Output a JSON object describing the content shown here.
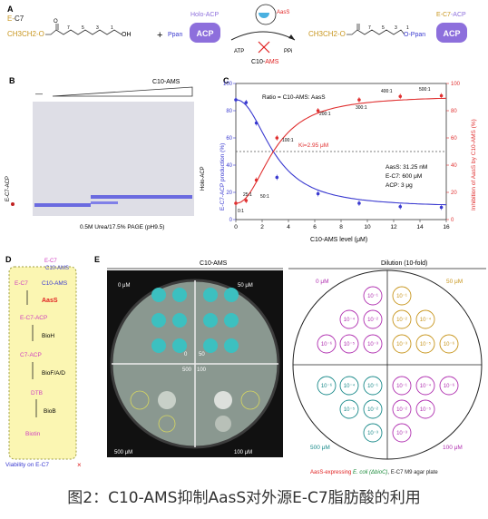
{
  "panel_a": {
    "label": "A",
    "ec7_prefix": "E-",
    "ec7_suffix": "C7",
    "ch3ch2o_left": "CH3CH2-O",
    "ch3ch2o_right": "CH3CH2-O",
    "oh": "OH",
    "plus": "+",
    "numbers_left": [
      "7",
      "5",
      "3",
      "1"
    ],
    "numbers_right": [
      "7",
      "5",
      "3",
      "1"
    ],
    "o_left": "O",
    "holo_acp": "Holo-ACP",
    "ppan_left": "Ppan",
    "acp": "ACP",
    "aass": "AasS",
    "atp": "ATP",
    "ppi": "PPi",
    "c10ams_prefix": "C10-",
    "c10ams_suffix": "AMS",
    "ec7acp_ec7": "E-C7",
    "ec7acp_acp": "-ACP",
    "o_ppan": "O-Ppan",
    "colors": {
      "red": "#e02020",
      "purple": "#8d6fdc",
      "orange": "#c8961e",
      "gold": "#b68a1a"
    }
  },
  "panel_b": {
    "label": "B",
    "dash": "—",
    "c10ams": "C10-AMS",
    "left_label": "E-C7-ACP",
    "right_label": "Holo-ACP",
    "footer": "0.5M Urea/17.5% PAGE (pH9.5)"
  },
  "panel_c": {
    "label": "C",
    "ratio": "Ratio = C10-AMS: AasS",
    "ki": "Ki=2.95 μM",
    "conditions": [
      "AasS: 31.25 nM",
      "E-C7: 600 μM",
      "ACP: 3 μg"
    ],
    "ylabel_left": "E-C7-ACP production (%)",
    "ylabel_right": "Inhibition of AasS by C10-AMS (%)",
    "xlabel": "C10-AMS level (μM)",
    "ratio_labels": [
      "0:1",
      "25:1",
      "50:1",
      "100:1",
      "200:1",
      "300:1",
      "400:1",
      "500:1"
    ]
  },
  "chart_data": {
    "type": "scatter",
    "xlabel": "C10-AMS level (μM)",
    "ylabel": "E-C7-ACP production (%)",
    "ylabel_right": "Inhibition of AasS by C10-AMS (%)",
    "xlim": [
      0,
      16
    ],
    "ylim": [
      0,
      100
    ],
    "x_ticks": [
      0,
      2,
      4,
      6,
      8,
      10,
      12,
      14,
      16
    ],
    "y_ticks": [
      0,
      20,
      40,
      60,
      80,
      100
    ],
    "series": [
      {
        "name": "E-C7-ACP production",
        "color": "#3a3ad0",
        "x": [
          0,
          0.78,
          1.56,
          3.125,
          6.25,
          9.375,
          12.5,
          15.625
        ],
        "y": [
          88,
          86,
          71,
          31,
          19,
          12,
          9.5,
          9
        ]
      },
      {
        "name": "Inhibition of AasS by C10-AMS",
        "color": "#e03030",
        "x": [
          0,
          0.78,
          1.56,
          3.125,
          6.25,
          9.375,
          12.5,
          15.625
        ],
        "y": [
          12,
          14,
          29,
          60,
          80,
          88,
          90.5,
          91
        ]
      }
    ],
    "hline": 50
  },
  "panel_d": {
    "label": "D",
    "top_ec7": "E-C7",
    "top_c10": "C10-AMS",
    "e_c7": "E-C7",
    "c10": "C10-AMS",
    "aass": "AasS",
    "ec7acp": "E-C7-ACP",
    "bioh": "BioH",
    "c7acp": "C7-ACP",
    "biofad": "BioF/A/D",
    "dtb": "DTB",
    "biob": "BioB",
    "biotin": "Biotin",
    "footer": "Viability on E-C7",
    "cross": "×"
  },
  "panel_e": {
    "label": "E",
    "c10ams_header": "C10-AMS",
    "dilution_header": "Dilution (10-fold)",
    "quadrants": [
      "0 μM",
      "50 μM",
      "500 μM",
      "100 μM"
    ],
    "center_labels": [
      "0",
      "50",
      "500",
      "100"
    ],
    "q_tl": [
      "10⁻¹",
      "10⁻²",
      "10⁻³",
      "10⁻⁴",
      "10⁻⁵",
      "10⁻⁶"
    ],
    "q_tr": [
      "10⁻¹",
      "10⁻²",
      "10⁻³",
      "10⁻⁴",
      "10⁻⁵",
      "10⁻⁶"
    ],
    "q_bl": [
      "10⁻¹",
      "10⁻²",
      "10⁻³",
      "10⁻⁴",
      "10⁻⁵",
      "10⁻⁶"
    ],
    "q_br": [
      "10⁻¹",
      "10⁻²",
      "10⁻³",
      "10⁻⁴",
      "10⁻⁵",
      "10⁻⁶"
    ],
    "footer_a": "AasS-expressing ",
    "footer_b": "E. coli (ΔbioC)",
    "footer_c": ", E-C7 M9 agar plate"
  },
  "caption": "图2：C10-AMS抑制AasS对外源E-C7脂肪酸的利用"
}
